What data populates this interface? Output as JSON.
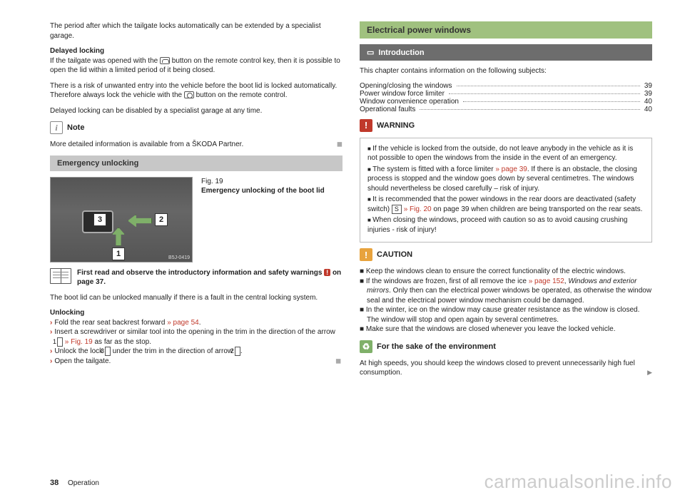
{
  "left": {
    "p1": "The period after which the tailgate locks automatically can be extended by a specialist garage.",
    "delayed_heading": "Delayed locking",
    "p2a": "If the tailgate was opened with the ",
    "p2b": " button on the remote control key, then it is possible to open the lid within a limited period of it being closed.",
    "p3a": "There is a risk of unwanted entry into the vehicle before the boot lid is locked automatically. Therefore always lock the vehicle with the ",
    "p3b": " button on the remote control.",
    "p4": "Delayed locking can be disabled by a specialist garage at any time.",
    "note_label": "Note",
    "note_text": "More detailed information is available from a ŠKODA Partner.",
    "emergency_heading": "Emergency unlocking",
    "fig_label": "Fig. 19",
    "fig_caption": "Emergency unlocking of the boot lid",
    "fig_code": "B5J-0419",
    "fig_n1": "1",
    "fig_n2": "2",
    "fig_n3": "3",
    "read_a": "First read and observe the introductory information and safety warnings ",
    "read_b": " on page 37.",
    "p5": "The boot lid can be unlocked manually if there is a fault in the central locking system.",
    "unlock_heading": "Unlocking",
    "u1a": "Fold the rear seat backrest forward ",
    "u1b": "» page 54",
    "u1c": ".",
    "u2a": "Insert a screwdriver or similar tool into the opening in the trim in the direction of the arrow ",
    "u2b": " » Fig. 19",
    "u2c": " as far as the stop.",
    "u3a": "Unlock the lock ",
    "u3b": " under the trim in the direction of arrow ",
    "u3c": ".",
    "u4": "Open the tailgate.",
    "box1": "1",
    "box2": "2",
    "box3": "3"
  },
  "right": {
    "title": "Electrical power windows",
    "intro_label": "Introduction",
    "intro_text": "This chapter contains information on the following subjects:",
    "toc": [
      {
        "label": "Opening/closing the windows",
        "page": "39"
      },
      {
        "label": "Power window force limiter",
        "page": "39"
      },
      {
        "label": "Window convenience operation",
        "page": "40"
      },
      {
        "label": "Operational faults",
        "page": "40"
      }
    ],
    "warn_label": "WARNING",
    "warn_items": {
      "w1": "If the vehicle is locked from the outside, do not leave anybody in the vehicle as it is not possible to open the windows from the inside in the event of an emergency.",
      "w2a": "The system is fitted with a force limiter ",
      "w2b": "» page 39",
      "w2c": ". If there is an obstacle, the closing process is stopped and the window goes down by several centimetres. The windows should nevertheless be closed carefully – risk of injury.",
      "w3a": "It is recommended that the power windows in the rear doors are deactivated (safety switch) ",
      "w3s": "S",
      "w3b": " » Fig. 20",
      "w3c": " on page 39 when children are being transported on the rear seats.",
      "w4": "When closing the windows, proceed with caution so as to avoid causing crushing injuries - risk of injury!"
    },
    "caution_label": "CAUTION",
    "caution_items": {
      "c1": "Keep the windows clean to ensure the correct functionality of the electric windows.",
      "c2a": "If the windows are frozen, first of all remove the ice ",
      "c2b": "» page 152",
      "c2c": ", ",
      "c2d": "Windows and exterior mirrors",
      "c2e": ". Only then can the electrical power windows be operated, as otherwise the window seal and the electrical power window mechanism could be damaged.",
      "c3": "In the winter, ice on the window may cause greater resistance as the window is closed. The window will stop and open again by several centimetres.",
      "c4": "Make sure that the windows are closed whenever you leave the locked vehicle."
    },
    "env_label": "For the sake of the environment",
    "env_text": "At high speeds, you should keep the windows closed to prevent unnecessarily high fuel consumption."
  },
  "footer": {
    "page": "38",
    "section": "Operation"
  },
  "watermark": "carmanualsonline.info",
  "icons": {
    "book": "📖",
    "intro": "📖"
  }
}
